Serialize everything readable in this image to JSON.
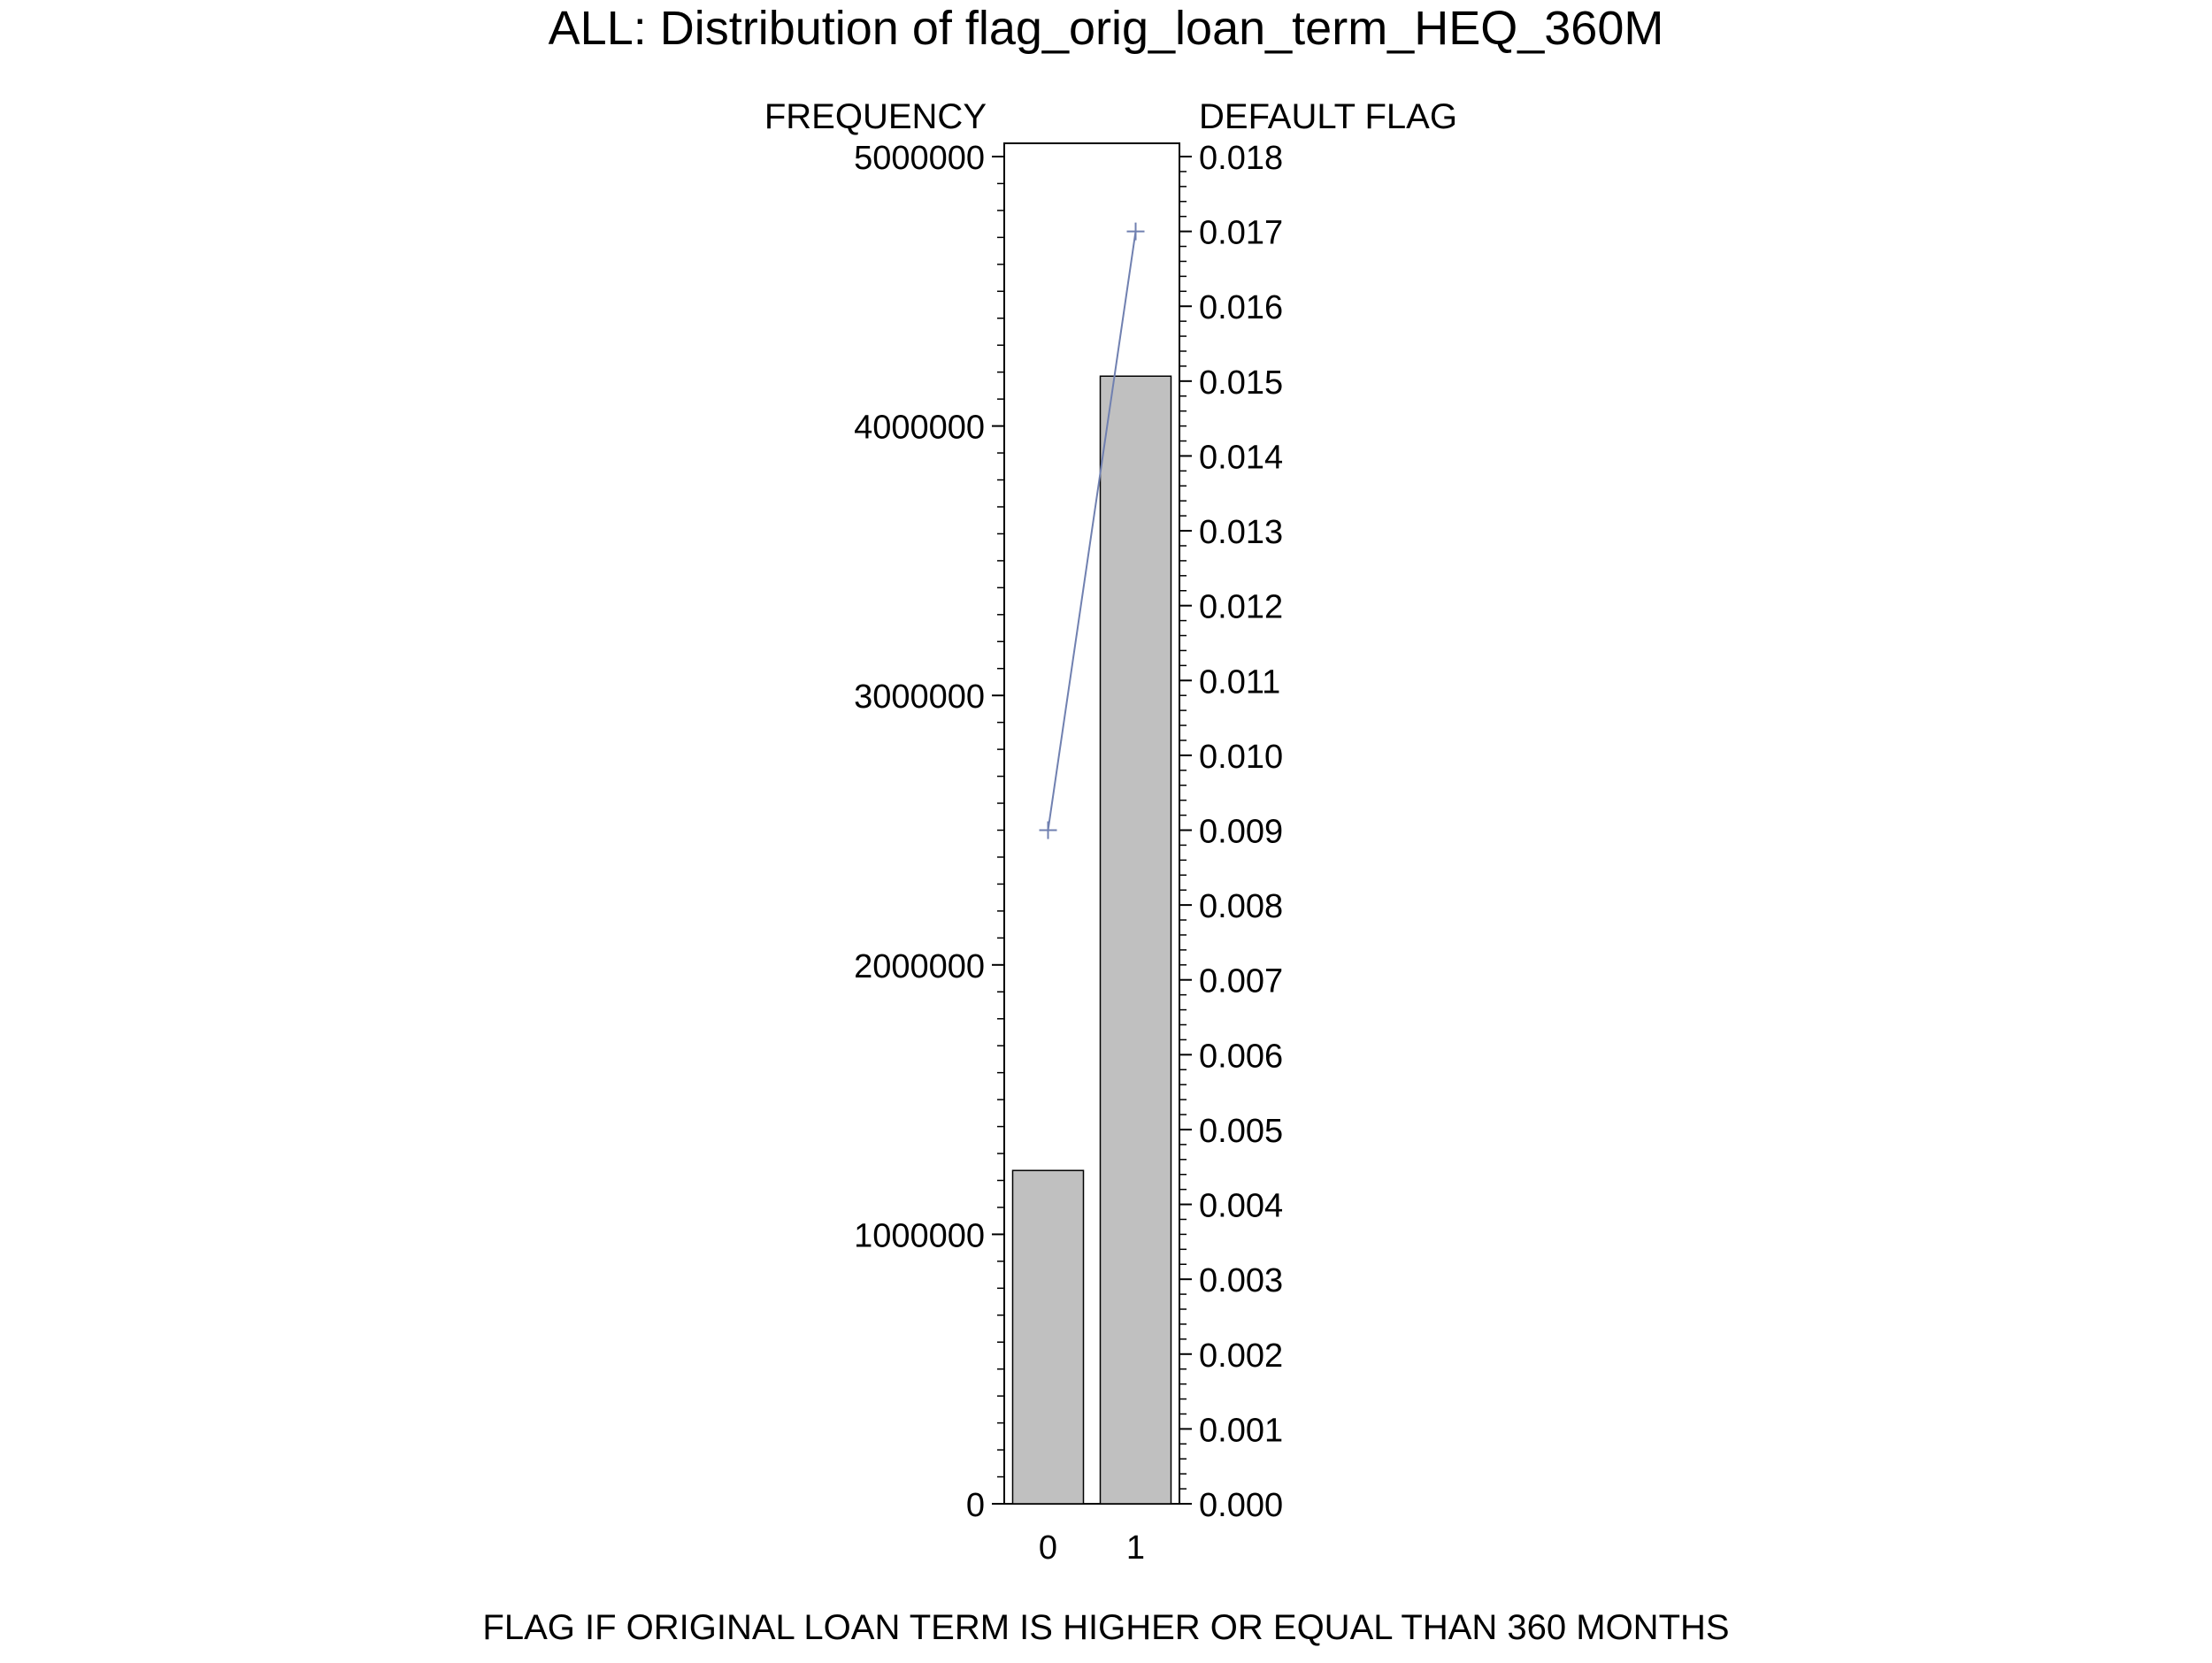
{
  "chart_data": {
    "type": "bar",
    "title": "ALL: Distribution of flag_orig_loan_term_HEQ_360M",
    "xlabel": "FLAG IF ORIGINAL LOAN TERM IS HIGHER OR EQUAL THAN 360 MONTHS",
    "ylabel": "FREQUENCY",
    "y2label": "DEFAULT FLAG",
    "categories": [
      "0",
      "1"
    ],
    "series": [
      {
        "type": "bar",
        "axis": "left",
        "values": [
          1237000,
          4185000
        ]
      },
      {
        "type": "line",
        "axis": "right",
        "marker": "plus",
        "values": [
          0.009,
          0.017
        ]
      }
    ],
    "ylim": [
      0,
      5000000
    ],
    "y2lim": [
      0,
      0.018
    ],
    "yticks": [
      "0",
      "1000000",
      "2000000",
      "3000000",
      "4000000",
      "5000000"
    ],
    "y2ticks": [
      "0.000",
      "0.001",
      "0.002",
      "0.003",
      "0.004",
      "0.005",
      "0.006",
      "0.007",
      "0.008",
      "0.009",
      "0.010",
      "0.011",
      "0.012",
      "0.013",
      "0.014",
      "0.015",
      "0.016",
      "0.017",
      "0.018"
    ],
    "grid": false,
    "legend": "none",
    "colors": {
      "bar_fill": "#c0c0c0",
      "bar_stroke": "#000000",
      "line": "#7080b0",
      "axis": "#000000"
    }
  }
}
